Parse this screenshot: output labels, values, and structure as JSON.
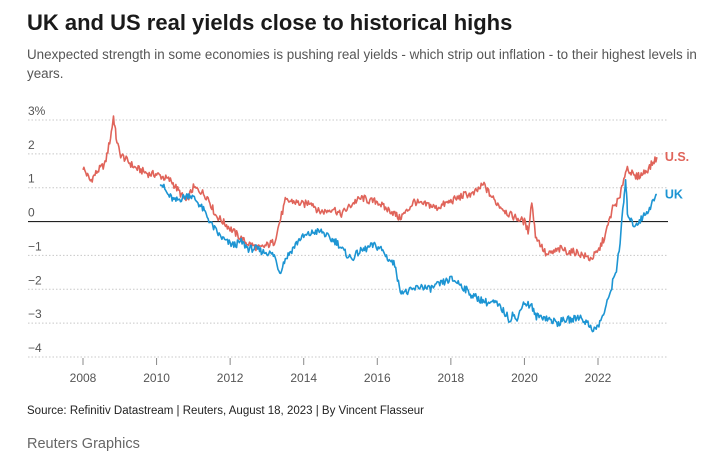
{
  "header": {
    "title": "UK and US real yields close to historical highs",
    "subtitle": "Unexpected strength in some economies is pushing real yields - which strip out inflation - to their highest levels in years."
  },
  "footer": {
    "source": "Source: Refinitiv Datastream | Reuters, August 18, 2023 | By Vincent Flasseur",
    "brand": "Reuters Graphics"
  },
  "chart_data": {
    "type": "line",
    "title": "UK and US real yields close to historical highs",
    "xlabel": "",
    "ylabel": "",
    "xlim": [
      2007.4,
      2023.9
    ],
    "ylim": [
      -4,
      3
    ],
    "y_ticks": [
      {
        "value": 3,
        "label": "3%"
      },
      {
        "value": 2,
        "label": "2"
      },
      {
        "value": 1,
        "label": "1"
      },
      {
        "value": 0,
        "label": "0"
      },
      {
        "value": -1,
        "label": "−1"
      },
      {
        "value": -2,
        "label": "−2"
      },
      {
        "value": -3,
        "label": "−3"
      },
      {
        "value": -4,
        "label": "−4"
      }
    ],
    "x_ticks": [
      {
        "value": 2008,
        "label": "2008"
      },
      {
        "value": 2010,
        "label": "2010"
      },
      {
        "value": 2012,
        "label": "2012"
      },
      {
        "value": 2014,
        "label": "2014"
      },
      {
        "value": 2016,
        "label": "2016"
      },
      {
        "value": 2018,
        "label": "2018"
      },
      {
        "value": 2020,
        "label": "2020"
      },
      {
        "value": 2022,
        "label": "2022"
      }
    ],
    "grid": true,
    "zero_line": true,
    "legend": "direct labels at line ends",
    "series": [
      {
        "name": "U.S.",
        "color": "#e0645a",
        "x": [
          2008.0,
          2008.2,
          2008.4,
          2008.6,
          2008.75,
          2008.83,
          2008.9,
          2009.0,
          2009.2,
          2009.4,
          2009.6,
          2009.8,
          2010.0,
          2010.2,
          2010.4,
          2010.6,
          2010.8,
          2011.0,
          2011.2,
          2011.4,
          2011.6,
          2011.8,
          2012.0,
          2012.2,
          2012.4,
          2012.6,
          2012.8,
          2013.0,
          2013.2,
          2013.4,
          2013.5,
          2013.7,
          2014.0,
          2014.2,
          2014.4,
          2014.6,
          2014.8,
          2015.0,
          2015.2,
          2015.4,
          2015.6,
          2015.8,
          2016.0,
          2016.2,
          2016.4,
          2016.6,
          2016.8,
          2017.0,
          2017.2,
          2017.4,
          2017.6,
          2017.8,
          2018.0,
          2018.2,
          2018.4,
          2018.6,
          2018.8,
          2018.9,
          2019.0,
          2019.2,
          2019.4,
          2019.6,
          2019.8,
          2020.0,
          2020.1,
          2020.2,
          2020.3,
          2020.4,
          2020.6,
          2020.8,
          2021.0,
          2021.2,
          2021.4,
          2021.6,
          2021.8,
          2022.0,
          2022.2,
          2022.4,
          2022.6,
          2022.7,
          2022.8,
          2023.0,
          2023.2,
          2023.4,
          2023.6
        ],
        "values": [
          1.6,
          1.2,
          1.5,
          1.7,
          2.5,
          3.1,
          2.5,
          2.0,
          1.8,
          1.6,
          1.5,
          1.4,
          1.4,
          1.3,
          1.2,
          0.9,
          0.6,
          1.0,
          0.9,
          0.7,
          0.2,
          0.0,
          -0.2,
          -0.4,
          -0.6,
          -0.7,
          -0.8,
          -0.7,
          -0.6,
          0.2,
          0.6,
          0.6,
          0.5,
          0.6,
          0.3,
          0.3,
          0.4,
          0.2,
          0.4,
          0.6,
          0.7,
          0.6,
          0.6,
          0.4,
          0.3,
          0.1,
          0.3,
          0.6,
          0.5,
          0.5,
          0.4,
          0.5,
          0.6,
          0.7,
          0.8,
          0.8,
          1.0,
          1.1,
          0.9,
          0.6,
          0.4,
          0.2,
          0.1,
          0.0,
          -0.3,
          0.6,
          -0.4,
          -0.6,
          -1.0,
          -0.9,
          -0.8,
          -0.9,
          -0.9,
          -1.0,
          -1.1,
          -0.9,
          -0.4,
          0.4,
          0.7,
          1.3,
          1.6,
          1.3,
          1.4,
          1.6,
          1.9
        ]
      },
      {
        "name": "UK",
        "color": "#1d95d3",
        "x": [
          2010.1,
          2010.3,
          2010.5,
          2010.7,
          2010.9,
          2011.1,
          2011.3,
          2011.5,
          2011.7,
          2011.9,
          2012.1,
          2012.3,
          2012.5,
          2012.7,
          2012.9,
          2013.0,
          2013.2,
          2013.35,
          2013.5,
          2013.7,
          2013.9,
          2014.1,
          2014.3,
          2014.5,
          2014.7,
          2014.9,
          2015.1,
          2015.3,
          2015.5,
          2015.7,
          2015.9,
          2016.1,
          2016.3,
          2016.5,
          2016.6,
          2016.8,
          2017.0,
          2017.2,
          2017.4,
          2017.6,
          2017.8,
          2018.0,
          2018.2,
          2018.4,
          2018.6,
          2018.8,
          2019.0,
          2019.2,
          2019.4,
          2019.6,
          2019.7,
          2019.8,
          2019.9,
          2020.0,
          2020.2,
          2020.3,
          2020.5,
          2020.7,
          2020.9,
          2021.1,
          2021.3,
          2021.5,
          2021.7,
          2021.9,
          2022.0,
          2022.2,
          2022.4,
          2022.5,
          2022.6,
          2022.7,
          2022.75,
          2022.8,
          2022.9,
          2023.0,
          2023.2,
          2023.4,
          2023.6
        ],
        "values": [
          1.2,
          0.8,
          0.6,
          0.7,
          0.8,
          0.6,
          0.3,
          -0.1,
          -0.4,
          -0.6,
          -0.7,
          -0.6,
          -0.8,
          -0.8,
          -0.9,
          -0.9,
          -1.0,
          -1.5,
          -1.1,
          -0.8,
          -0.5,
          -0.4,
          -0.3,
          -0.3,
          -0.5,
          -0.6,
          -0.9,
          -1.1,
          -0.9,
          -0.8,
          -0.7,
          -0.8,
          -1.1,
          -1.3,
          -2.0,
          -2.1,
          -2.0,
          -1.9,
          -2.0,
          -1.9,
          -1.8,
          -1.7,
          -1.8,
          -2.0,
          -2.2,
          -2.3,
          -2.4,
          -2.4,
          -2.6,
          -2.9,
          -2.7,
          -3.0,
          -2.5,
          -2.4,
          -2.5,
          -2.8,
          -2.8,
          -2.9,
          -3.0,
          -2.9,
          -2.9,
          -2.8,
          -3.0,
          -3.2,
          -3.1,
          -2.6,
          -1.8,
          -1.4,
          -0.6,
          0.6,
          1.2,
          0.3,
          0.0,
          -0.1,
          0.1,
          0.4,
          0.8
        ]
      }
    ]
  }
}
